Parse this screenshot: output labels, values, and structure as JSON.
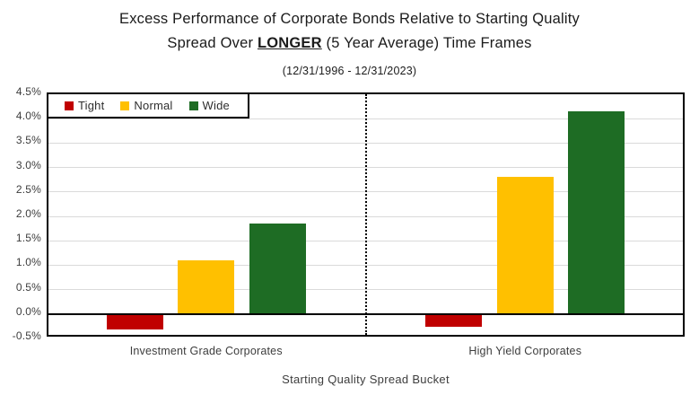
{
  "title": {
    "line1": "Excess Performance of Corporate Bonds Relative to Starting Quality",
    "line2_prefix": "Spread Over ",
    "line2_emphasis": "LONGER",
    "line2_suffix": " (5 Year Average) Time Frames",
    "subtitle": "(12/31/1996 - 12/31/2023)"
  },
  "chart_data": {
    "type": "bar",
    "categories": [
      "Investment Grade Corporates",
      "High Yield Corporates"
    ],
    "series": [
      {
        "name": "Tight",
        "color": "#C00000",
        "values": [
          -0.3,
          -0.25
        ]
      },
      {
        "name": "Normal",
        "color": "#FFC000",
        "values": [
          1.1,
          2.8
        ]
      },
      {
        "name": "Wide",
        "color": "#1E6C24",
        "values": [
          1.85,
          4.15
        ]
      }
    ],
    "xlabel": "Starting Quality Spread Bucket",
    "ylabel": "",
    "ylim": [
      -0.5,
      4.5
    ],
    "ytick_step": 0.5,
    "ytick_labels": [
      "4.5%",
      "4.0%",
      "3.5%",
      "3.0%",
      "2.5%",
      "2.0%",
      "1.5%",
      "1.0%",
      "0.5%",
      "0.0%",
      "-0.5%"
    ],
    "grid": true,
    "legend_position": "top-left",
    "divider": "dotted vertical line between category groups"
  },
  "colors": {
    "tight": "#C00000",
    "normal": "#FFC000",
    "wide": "#1E6C24",
    "gridline": "#DADADA",
    "axis": "#000000",
    "tick_text": "#3D3D3D"
  }
}
